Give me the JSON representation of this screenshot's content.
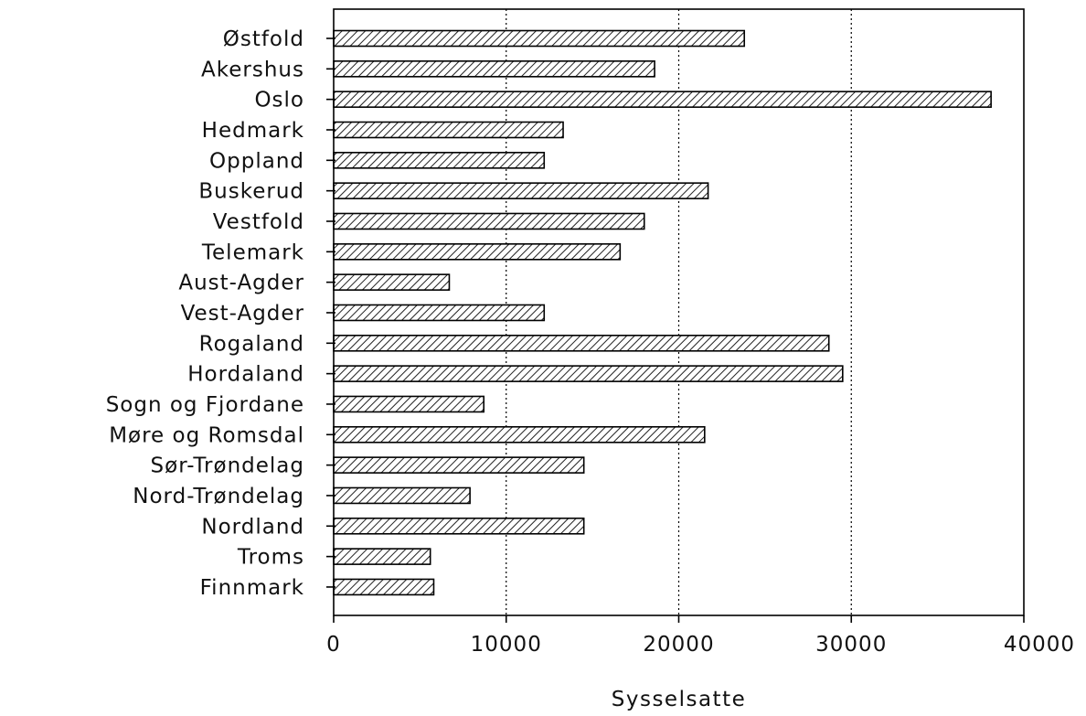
{
  "chart_data": {
    "type": "bar",
    "orientation": "horizontal",
    "categories": [
      "Østfold",
      "Akershus",
      "Oslo",
      "Hedmark",
      "Oppland",
      "Buskerud",
      "Vestfold",
      "Telemark",
      "Aust-Agder",
      "Vest-Agder",
      "Rogaland",
      "Hordaland",
      "Sogn og Fjordane",
      "Møre og Romsdal",
      "Sør-Trøndelag",
      "Nord-Trøndelag",
      "Nordland",
      "Troms",
      "Finnmark"
    ],
    "values": [
      23800,
      18600,
      38100,
      13300,
      12200,
      21700,
      18000,
      16600,
      6700,
      12200,
      28700,
      29500,
      8700,
      21500,
      14500,
      7900,
      14500,
      5600,
      5800
    ],
    "title": "",
    "xlabel": "Sysselsatte",
    "ylabel": "",
    "xlim": [
      0,
      40000
    ],
    "xticks": [
      0,
      10000,
      20000,
      30000,
      40000
    ],
    "xtick_labels": [
      "0",
      "10000",
      "20000",
      "30000",
      "40000"
    ],
    "grid": "vertical dotted lines at 10000, 20000, 30000",
    "legend": "none",
    "bar_fill": "diagonal hatch",
    "colors": {
      "axis": "#000000",
      "bar_edge": "#000000",
      "hatch": "#222222",
      "background": "#ffffff"
    }
  }
}
